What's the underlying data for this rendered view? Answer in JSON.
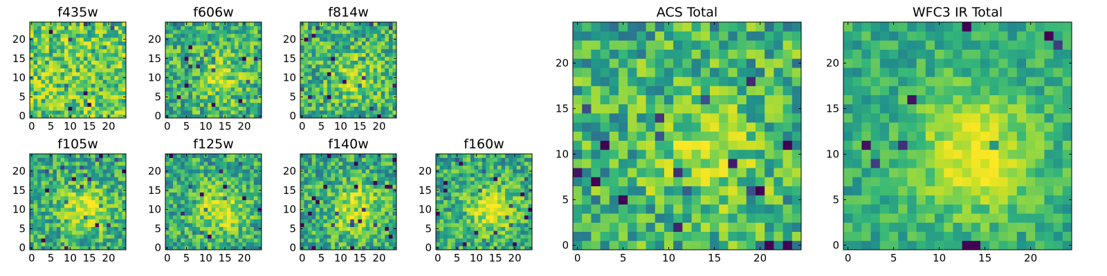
{
  "chart_data": [
    {
      "type": "heatmap",
      "title": "f435w",
      "grid_size": 25,
      "xticks": [
        0,
        5,
        10,
        15,
        20
      ],
      "yticks": [
        0,
        5,
        10,
        15,
        20
      ],
      "colormap": "viridis",
      "pattern": "noise",
      "seed": 11
    },
    {
      "type": "heatmap",
      "title": "f606w",
      "grid_size": 25,
      "xticks": [
        0,
        5,
        10,
        15,
        20
      ],
      "yticks": [
        0,
        5,
        10,
        15,
        20
      ],
      "colormap": "viridis",
      "pattern": "faint-source",
      "seed": 23
    },
    {
      "type": "heatmap",
      "title": "f814w",
      "grid_size": 25,
      "xticks": [
        0,
        5,
        10,
        15,
        20
      ],
      "yticks": [
        0,
        5,
        10,
        15,
        20
      ],
      "colormap": "viridis",
      "pattern": "faint-source",
      "seed": 37
    },
    {
      "type": "heatmap",
      "title": "f105w",
      "grid_size": 25,
      "xticks": [
        0,
        5,
        10,
        15,
        20
      ],
      "yticks": [
        0,
        5,
        10,
        15,
        20
      ],
      "colormap": "viridis",
      "pattern": "source",
      "seed": 41
    },
    {
      "type": "heatmap",
      "title": "f125w",
      "grid_size": 25,
      "xticks": [
        0,
        5,
        10,
        15,
        20
      ],
      "yticks": [
        0,
        5,
        10,
        15,
        20
      ],
      "colormap": "viridis",
      "pattern": "source",
      "seed": 53
    },
    {
      "type": "heatmap",
      "title": "f140w",
      "grid_size": 25,
      "xticks": [
        0,
        5,
        10,
        15,
        20
      ],
      "yticks": [
        0,
        5,
        10,
        15,
        20
      ],
      "colormap": "viridis",
      "pattern": "source",
      "seed": 67
    },
    {
      "type": "heatmap",
      "title": "f160w",
      "grid_size": 25,
      "xticks": [
        0,
        5,
        10,
        15,
        20
      ],
      "yticks": [
        0,
        5,
        10,
        15,
        20
      ],
      "colormap": "viridis",
      "pattern": "source",
      "seed": 71
    },
    {
      "type": "heatmap",
      "title": "ACS Total",
      "grid_size": 25,
      "xticks": [
        0,
        5,
        10,
        15,
        20
      ],
      "yticks": [
        0,
        5,
        10,
        15,
        20
      ],
      "colormap": "viridis",
      "pattern": "faint-source",
      "seed": 83
    },
    {
      "type": "heatmap",
      "title": "WFC3 IR Total",
      "grid_size": 25,
      "xticks": [
        0,
        5,
        10,
        15,
        20
      ],
      "yticks": [
        0,
        5,
        10,
        15,
        20
      ],
      "colormap": "viridis",
      "pattern": "bright-source",
      "seed": 97
    }
  ]
}
